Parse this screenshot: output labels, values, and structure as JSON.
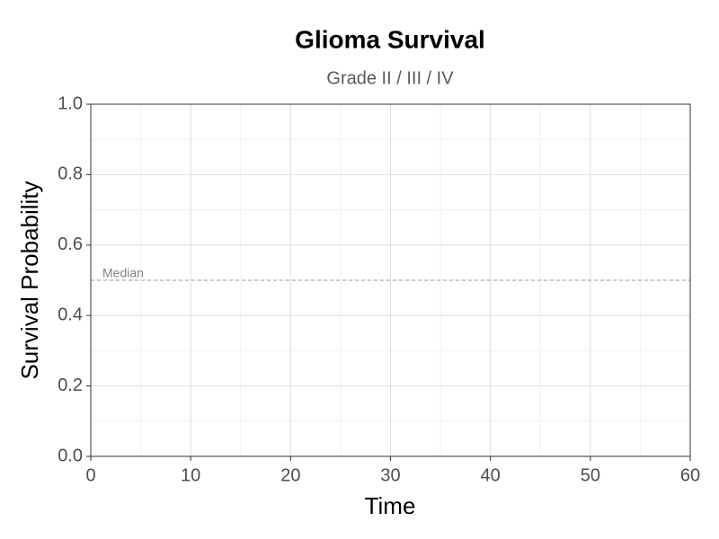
{
  "chart_data": {
    "type": "line",
    "title": "Glioma Survival",
    "subtitle": "Grade II / III / IV",
    "xlabel": "Time",
    "ylabel": "Survival Probability",
    "xlim": [
      0,
      60
    ],
    "xticks": [
      0,
      10,
      20,
      30,
      40,
      50,
      60
    ],
    "ylim": [
      0,
      1
    ],
    "yticks": [
      {
        "value": 0,
        "label": "0.0"
      },
      0.2,
      0.4,
      0.6,
      0.8,
      {
        "value": 1,
        "label": "1.0"
      }
    ],
    "grid": true,
    "minor_grid": true,
    "reference_line": {
      "y": 0.5,
      "label": "Median",
      "color": "#999999"
    },
    "series": []
  }
}
